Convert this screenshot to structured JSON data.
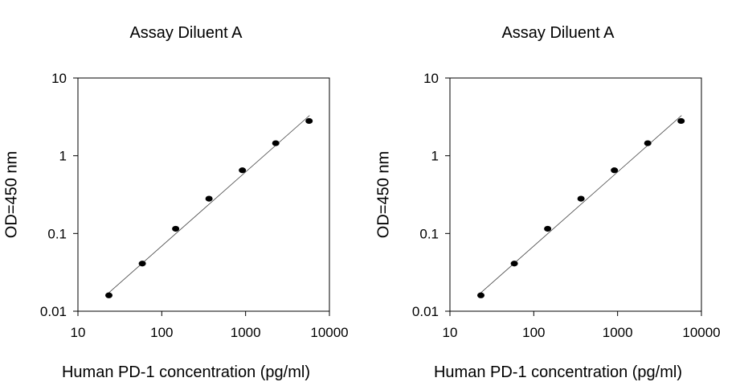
{
  "chart_data": [
    {
      "type": "scatter",
      "title": "Assay Diluent A",
      "xlabel": "Human PD-1 concentration (pg/ml)",
      "ylabel": "OD=450 nm",
      "x_scale": "log",
      "y_scale": "log",
      "xlim": [
        10,
        10000
      ],
      "ylim": [
        0.01,
        10
      ],
      "x_ticks": [
        "10",
        "100",
        "1000",
        "10000"
      ],
      "y_ticks": [
        "0.01",
        "0.1",
        "1",
        "10"
      ],
      "grid": false,
      "legend": "none",
      "series": [
        {
          "x": [
            23.4,
            58.6,
            146.5,
            366.2,
            915.5,
            2289,
            5722
          ],
          "y": [
            0.016,
            0.041,
            0.115,
            0.28,
            0.65,
            1.45,
            2.8
          ]
        }
      ],
      "fit_line": {
        "x": [
          23,
          5800
        ],
        "y": [
          0.017,
          3.3
        ]
      }
    },
    {
      "type": "scatter",
      "title": "Assay Diluent A",
      "xlabel": "Human PD-1 concentration (pg/ml)",
      "ylabel": "OD=450 nm",
      "x_scale": "log",
      "y_scale": "log",
      "xlim": [
        10,
        10000
      ],
      "ylim": [
        0.01,
        10
      ],
      "x_ticks": [
        "10",
        "100",
        "1000",
        "10000"
      ],
      "y_ticks": [
        "0.01",
        "0.1",
        "1",
        "10"
      ],
      "grid": false,
      "legend": "none",
      "series": [
        {
          "x": [
            23.4,
            58.6,
            146.5,
            366.2,
            915.5,
            2289,
            5722
          ],
          "y": [
            0.016,
            0.041,
            0.115,
            0.28,
            0.65,
            1.45,
            2.8
          ]
        }
      ],
      "fit_line": {
        "x": [
          23,
          5800
        ],
        "y": [
          0.017,
          3.3
        ]
      }
    }
  ]
}
